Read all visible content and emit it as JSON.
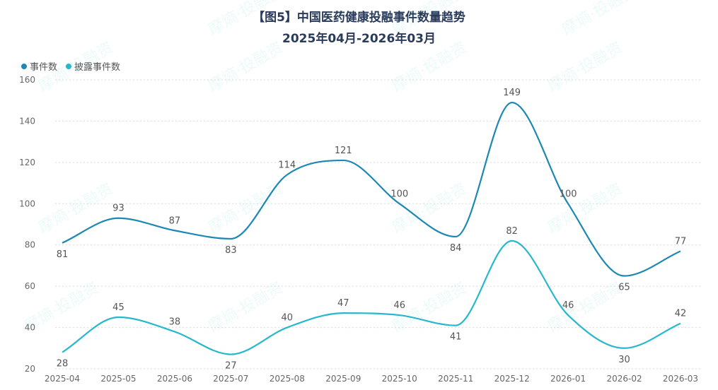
{
  "header": {
    "title": "【图5】中国医药健康投融事件数量趋势",
    "subtitle": "2025年04月-2026年03月"
  },
  "watermark": "摩熵·投融资",
  "chart_data": {
    "type": "line",
    "title": "【图5】中国医药健康投融事件数量趋势",
    "subtitle": "2025年04月-2026年03月",
    "xlabel": "",
    "ylabel": "",
    "x": [
      "2025-04",
      "2025-05",
      "2025-06",
      "2025-07",
      "2025-08",
      "2025-09",
      "2025-10",
      "2025-11",
      "2025-12",
      "2026-01",
      "2026-02",
      "2026-03"
    ],
    "series": [
      {
        "name": "事件数",
        "color": "#1e88b4",
        "values": [
          81,
          93,
          87,
          83,
          114,
          121,
          100,
          84,
          149,
          100,
          65,
          77
        ]
      },
      {
        "name": "披露事件数",
        "color": "#26b8cc",
        "values": [
          28,
          45,
          38,
          27,
          40,
          47,
          46,
          41,
          82,
          46,
          30,
          42
        ]
      }
    ],
    "ylim": [
      20,
      160
    ],
    "yticks": [
      20,
      40,
      60,
      80,
      100,
      120,
      140,
      160
    ],
    "grid": true,
    "legend": "top-left",
    "smooth": true
  }
}
